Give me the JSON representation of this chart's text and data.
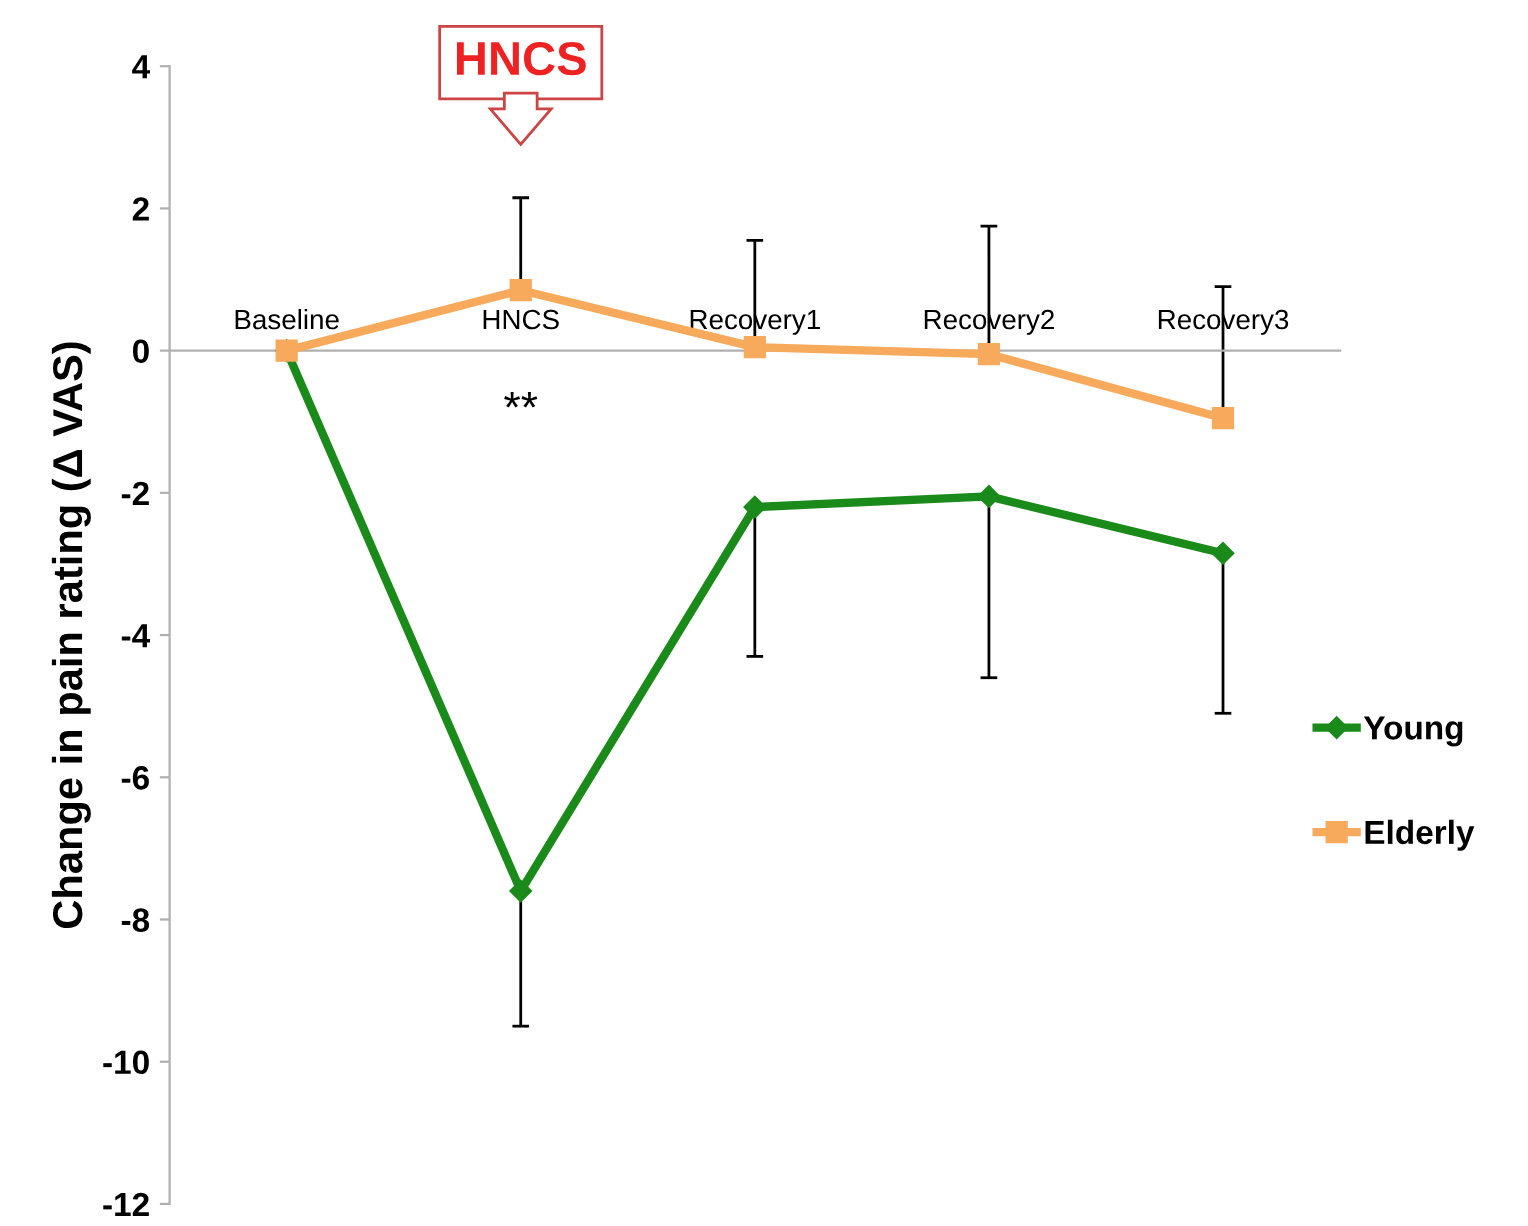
{
  "chart_data": {
    "type": "line",
    "ylabel": "Change in pain rating (Δ VAS)",
    "categories": [
      "Baseline",
      "HNCS",
      "Recovery1",
      "Recovery2",
      "Recovery3"
    ],
    "series": [
      {
        "name": "Young",
        "color": "#1a8a1a",
        "marker": "diamond",
        "values": [
          0,
          -7.6,
          -2.2,
          -2.05,
          -2.85
        ],
        "errors": [
          null,
          [
            -9.5,
            -7.6
          ],
          [
            -4.3,
            -2.2
          ],
          [
            -4.6,
            -2.05
          ],
          [
            -5.1,
            -2.85
          ]
        ]
      },
      {
        "name": "Elderly",
        "color": "#f7a95c",
        "marker": "square",
        "values": [
          0,
          0.85,
          0.05,
          -0.05,
          -0.95
        ],
        "errors": [
          null,
          [
            0.85,
            2.15
          ],
          [
            0.05,
            1.55
          ],
          [
            -0.05,
            1.75
          ],
          [
            -0.95,
            0.9
          ]
        ]
      }
    ],
    "annotations": [
      "HNCS",
      "**"
    ],
    "ylim": [
      -12,
      4
    ],
    "yticks": [
      -12,
      -10,
      -8,
      -6,
      -4,
      -2,
      0,
      2,
      4
    ],
    "grid": false,
    "legend": "right"
  }
}
